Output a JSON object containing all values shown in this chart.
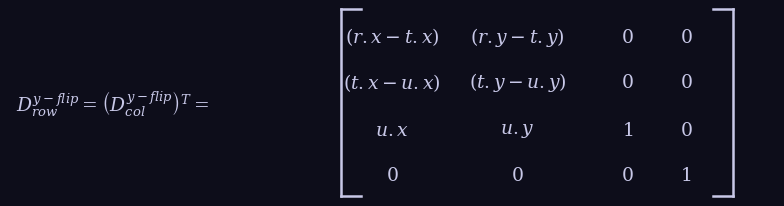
{
  "background_color": "#0d0d1a",
  "text_color": "#c8c8e8",
  "figsize": [
    7.84,
    2.07
  ],
  "dpi": 100,
  "fontsize": 13.5
}
